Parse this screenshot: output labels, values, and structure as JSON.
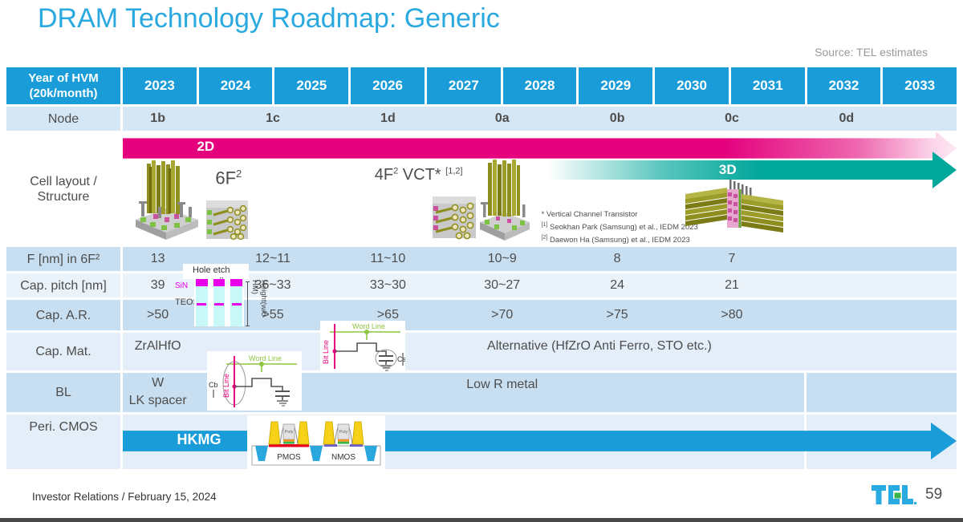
{
  "slide": {
    "title": "DRAM Technology Roadmap: Generic",
    "source": "Source: TEL estimates",
    "footer_left": "Investor Relations / February 15, 2024",
    "page_number": "59",
    "logo_text": "TEL"
  },
  "colors": {
    "header_blue": "#1A9CD8",
    "title_blue": "#29A9E0",
    "arrow_2d_magenta": "#E5007D",
    "arrow_3d_teal": "#00A79B",
    "word_line_green": "#8DC63F",
    "bit_line_magenta": "#E5007D",
    "sin_magenta": "#E800E8",
    "logo_green": "#3AB54A"
  },
  "table": {
    "corner_line1": "Year of HVM",
    "corner_line2": "(20k/month)",
    "years": [
      "2023",
      "2024",
      "2025",
      "2026",
      "2027",
      "2028",
      "2029",
      "2030",
      "2031",
      "2032",
      "2033"
    ],
    "node_label": "Node",
    "node_values": [
      "1b",
      "1c",
      "1d",
      "0a",
      "0b",
      "0c",
      "0d"
    ],
    "structure": {
      "label_line1": "Cell layout /",
      "label_line2": "Structure",
      "arrow_2d_label": "2D",
      "arrow_3d_label": "3D",
      "label_6f2_base": "6F",
      "label_6f2_sup": "2",
      "label_4f2_base": "4F",
      "label_4f2_sup": "2",
      "label_vct": "VCT*",
      "label_vct_ref": "[1,2]",
      "footnote_star": "* Vertical Channel Transistor",
      "footnote_1_ref": "[1]",
      "footnote_1": "Seokhan Park (Samsung) et al., IEDM 2023",
      "footnote_2_ref": "[2]",
      "footnote_2": "Daewon Ha (Samsung) et al., IEDM 2023"
    },
    "rows": {
      "f": {
        "label": "F [nm] in 6F²",
        "values": [
          "13",
          "12~11",
          "11~10",
          "10~9",
          "8",
          "7"
        ]
      },
      "pitch": {
        "label": "Cap. pitch [nm]",
        "values": [
          "39",
          "36~33",
          "33~30",
          "30~27",
          "24",
          "21"
        ]
      },
      "ar": {
        "label": "Cap. A.R.",
        "values": [
          ">50",
          ">55",
          ">65",
          ">70",
          ">75",
          ">80"
        ]
      },
      "mat": {
        "label": "Cap. Mat.",
        "material": "ZrAlHfO",
        "alternative": "Alternative (HfZrO Anti Ferro, STO etc.)"
      },
      "bl": {
        "label": "BL",
        "line1": "W",
        "line2": "LK spacer",
        "metal": "Low R metal"
      },
      "peri": {
        "label": "Peri. CMOS",
        "arrow_label": "HKMG"
      }
    }
  },
  "insets": {
    "hole_etch": {
      "title": "Hole etch",
      "sin": "SiN",
      "teos": "TEOS",
      "height": "Height",
      "height_sub": "(w/o HM)"
    },
    "circuit_cs": {
      "word_line": "Word Line",
      "bit_line": "Bit Line",
      "cap": "Cs"
    },
    "circuit_cb": {
      "word_line": "Word Line",
      "bit_line": "Bit Line",
      "cap": "Cb"
    },
    "cmos": {
      "pmos": "PMOS",
      "nmos": "NMOS",
      "poly": "Poly"
    }
  }
}
